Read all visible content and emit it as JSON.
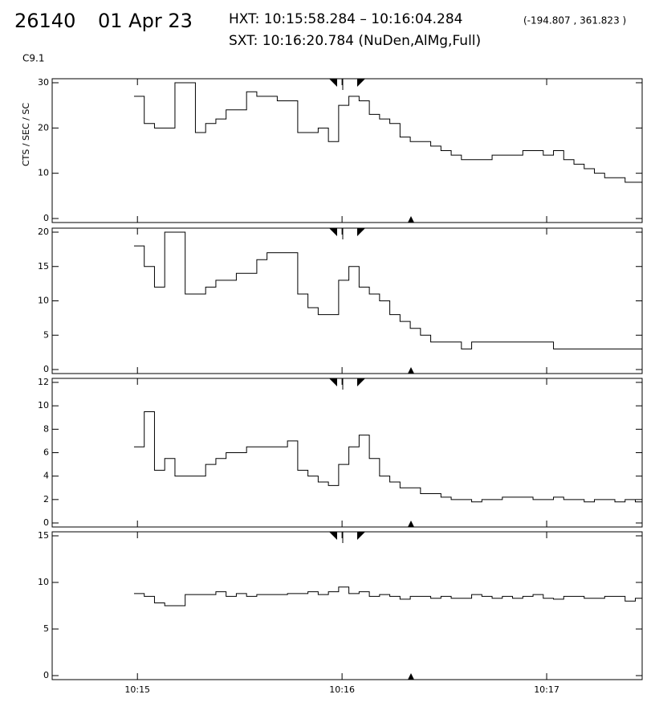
{
  "header": {
    "id": "26140",
    "date": "01 Apr 23",
    "hxt": "HXT: 10:15:58.284 – 10:16:04.284",
    "coords": "(-194.807 , 361.823 )",
    "sxt": "SXT: 10:16:20.784 (NuDen,AlMg,Full)",
    "class": "C9.1"
  },
  "chart_data": [
    {
      "type": "line",
      "ylabel": "CTS / SEC / SC",
      "xlim": [
        35,
        208
      ],
      "xticks": [
        {
          "value": 60,
          "label": "10:15"
        },
        {
          "value": 120,
          "label": "10:16"
        },
        {
          "value": 180,
          "label": "10:17"
        }
      ],
      "x": [
        59,
        62,
        65,
        68,
        71,
        74,
        77,
        80,
        83,
        86,
        89,
        92,
        95,
        98,
        101,
        104,
        107,
        110,
        113,
        116,
        119,
        122,
        125,
        128,
        131,
        134,
        137,
        140,
        143,
        146,
        149,
        152,
        155,
        158,
        161,
        164,
        167,
        170,
        173,
        176,
        179,
        182,
        185,
        188,
        191,
        194,
        197,
        200,
        203,
        206
      ],
      "ylim": [
        0,
        30
      ],
      "yticks": [
        0,
        10,
        20,
        30
      ],
      "series": [
        {
          "color": "#000000",
          "values": [
            27,
            21,
            20,
            20,
            30,
            30,
            19,
            21,
            22,
            24,
            24,
            28,
            27,
            27,
            26,
            26,
            19,
            19,
            20,
            17,
            25,
            27,
            26,
            23,
            22,
            21,
            18,
            17,
            17,
            16,
            15,
            14,
            13,
            13,
            13,
            14,
            14,
            14,
            15,
            15,
            14,
            15,
            13,
            12,
            11,
            10,
            9,
            9,
            8,
            8
          ]
        }
      ]
    },
    {
      "type": "line",
      "xlim": [
        35,
        208
      ],
      "xticks": [
        {
          "value": 60,
          "label": "10:15"
        },
        {
          "value": 120,
          "label": "10:16"
        },
        {
          "value": 180,
          "label": "10:17"
        }
      ],
      "x": [
        59,
        62,
        65,
        68,
        71,
        74,
        77,
        80,
        83,
        86,
        89,
        92,
        95,
        98,
        101,
        104,
        107,
        110,
        113,
        116,
        119,
        122,
        125,
        128,
        131,
        134,
        137,
        140,
        143,
        146,
        149,
        152,
        155,
        158,
        161,
        164,
        167,
        170,
        173,
        176,
        179,
        182,
        185,
        188,
        191,
        194,
        197,
        200,
        203,
        206
      ],
      "ylim": [
        0,
        20
      ],
      "yticks": [
        0,
        5,
        10,
        15,
        20
      ],
      "series": [
        {
          "color": "#000000",
          "values": [
            18,
            15,
            12,
            20,
            20,
            11,
            11,
            12,
            13,
            13,
            14,
            14,
            16,
            17,
            17,
            17,
            11,
            9,
            8,
            8,
            13,
            15,
            12,
            11,
            10,
            8,
            7,
            6,
            5,
            4,
            4,
            4,
            3,
            4,
            4,
            4,
            4,
            4,
            4,
            4,
            4,
            3,
            3,
            3,
            3,
            3,
            3,
            3,
            3,
            3
          ]
        }
      ]
    },
    {
      "type": "line",
      "xlim": [
        35,
        208
      ],
      "xticks": [
        {
          "value": 60,
          "label": "10:15"
        },
        {
          "value": 120,
          "label": "10:16"
        },
        {
          "value": 180,
          "label": "10:17"
        }
      ],
      "x": [
        59,
        62,
        65,
        68,
        71,
        74,
        77,
        80,
        83,
        86,
        89,
        92,
        95,
        98,
        101,
        104,
        107,
        110,
        113,
        116,
        119,
        122,
        125,
        128,
        131,
        134,
        137,
        140,
        143,
        146,
        149,
        152,
        155,
        158,
        161,
        164,
        167,
        170,
        173,
        176,
        179,
        182,
        185,
        188,
        191,
        194,
        197,
        200,
        203,
        206
      ],
      "ylim": [
        0,
        12
      ],
      "yticks": [
        0,
        2,
        4,
        6,
        8,
        10,
        12
      ],
      "series": [
        {
          "color": "#000000",
          "values": [
            6.5,
            9.5,
            4.5,
            5.5,
            4,
            4,
            4,
            5,
            5.5,
            6,
            6,
            6.5,
            6.5,
            6.5,
            6.5,
            7,
            4.5,
            4,
            3.5,
            3.2,
            5,
            6.5,
            7.5,
            5.5,
            4,
            3.5,
            3,
            3,
            2.5,
            2.5,
            2.2,
            2,
            2,
            1.8,
            2,
            2,
            2.2,
            2.2,
            2.2,
            2,
            2,
            2.2,
            2,
            2,
            1.8,
            2,
            2,
            1.8,
            2,
            1.8
          ]
        }
      ]
    },
    {
      "type": "line",
      "xlim": [
        35,
        208
      ],
      "xticks": [
        {
          "value": 60,
          "label": "10:15"
        },
        {
          "value": 120,
          "label": "10:16"
        },
        {
          "value": 180,
          "label": "10:17"
        }
      ],
      "x": [
        59,
        62,
        65,
        68,
        71,
        74,
        77,
        80,
        83,
        86,
        89,
        92,
        95,
        98,
        101,
        104,
        107,
        110,
        113,
        116,
        119,
        122,
        125,
        128,
        131,
        134,
        137,
        140,
        143,
        146,
        149,
        152,
        155,
        158,
        161,
        164,
        167,
        170,
        173,
        176,
        179,
        182,
        185,
        188,
        191,
        194,
        197,
        200,
        203,
        206
      ],
      "ylim": [
        0,
        15
      ],
      "yticks": [
        0,
        5,
        10,
        15
      ],
      "series": [
        {
          "color": "#000000",
          "values": [
            8.8,
            8.5,
            7.8,
            7.5,
            7.5,
            8.7,
            8.7,
            8.7,
            9,
            8.5,
            8.8,
            8.5,
            8.7,
            8.7,
            8.7,
            8.8,
            8.8,
            9,
            8.7,
            9,
            9.5,
            8.8,
            9,
            8.5,
            8.7,
            8.5,
            8.2,
            8.5,
            8.5,
            8.3,
            8.5,
            8.3,
            8.3,
            8.7,
            8.5,
            8.3,
            8.5,
            8.3,
            8.5,
            8.7,
            8.3,
            8.2,
            8.5,
            8.5,
            8.3,
            8.3,
            8.5,
            8.5,
            8,
            8.3
          ]
        }
      ]
    }
  ]
}
